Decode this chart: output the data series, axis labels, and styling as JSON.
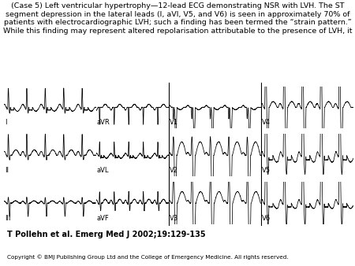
{
  "title_text": "(Case 5) Left ventricular hypertrophy—12-lead ECG demonstrating NSR with LVH. The ST\nsegment depression in the lateral leads (I, aVl, V5, and V6) is seen in approximately 70% of\npatients with electrocardiographic LVH; such a finding has been termed the “strain pattern.”\nWhile this finding may represent altered repolarisation attributable to the presence of LVH, it",
  "citation": "T Pollehn et al. Emerg Med J 2002;19:129-135",
  "copyright": "Copyright © BMJ Publishing Group Ltd and the College of Emergency Medicine. All rights reserved.",
  "emj_color": "#cc0000",
  "bg_color": "#ffffff",
  "ecg_color": "#000000",
  "title_fontsize": 6.8,
  "citation_fontsize": 7.0,
  "copyright_fontsize": 5.2,
  "emj_fontsize": 10
}
